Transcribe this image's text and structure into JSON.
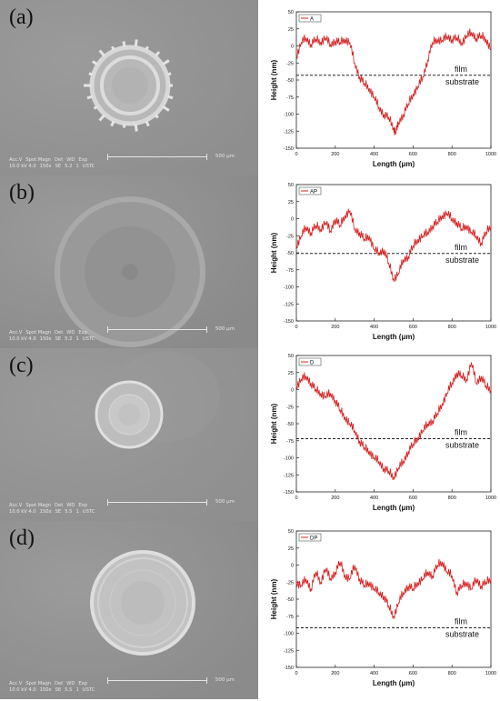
{
  "sem_panels": [
    {
      "letter": "(a)",
      "info_header": [
        "Acc.V",
        "Spot Magn",
        "Det",
        "WD",
        "Exp"
      ],
      "info_values": [
        "10.0 kV 4.0",
        "150x",
        "SE",
        "5.2",
        "1"
      ],
      "org": "USTC",
      "scale": "500 µm",
      "style": "rough"
    },
    {
      "letter": "(b)",
      "info_header": [
        "Acc.V",
        "Spot Magn",
        "Det",
        "WD",
        "Exp"
      ],
      "info_values": [
        "10.0 kV 4.0",
        "150x",
        "SE",
        "5.2",
        "1"
      ],
      "org": "USTC",
      "scale": "500 µm",
      "style": "diffuse"
    },
    {
      "letter": "(c)",
      "info_header": [
        "Acc.V",
        "Spot Magn",
        "Det",
        "WD",
        "Exp"
      ],
      "info_values": [
        "10.0 kV 4.0",
        "150x",
        "SE",
        "5.5",
        "1"
      ],
      "org": "USTC",
      "scale": "500 µm",
      "style": "small"
    },
    {
      "letter": "(d)",
      "info_header": [
        "Acc.V",
        "Spot Magn",
        "Det",
        "WD",
        "Exp"
      ],
      "info_values": [
        "10.0 kV 4.0",
        "150x",
        "SE",
        "5.5",
        "1"
      ],
      "org": "USTC",
      "scale": "500 µm",
      "style": "large"
    }
  ],
  "colors": {
    "profile_line": "#d42020",
    "baseline": "#222222",
    "axis": "#222222"
  },
  "chart_data": [
    {
      "type": "line",
      "legend": "A",
      "xlabel": "Length (μm)",
      "ylabel": "Height (nm)",
      "xlim": [
        0,
        1000
      ],
      "ylim": [
        -150,
        50
      ],
      "xticks": [
        0,
        200,
        400,
        600,
        800,
        1000
      ],
      "yticks": [
        50,
        25,
        0,
        -25,
        -50,
        -75,
        -100,
        -125,
        -150
      ],
      "baseline": -43,
      "film_label": "film",
      "substrate_label": "substrate",
      "x": [
        0,
        25,
        50,
        75,
        100,
        125,
        150,
        175,
        200,
        225,
        250,
        275,
        300,
        325,
        350,
        375,
        400,
        425,
        450,
        475,
        500,
        510,
        525,
        550,
        575,
        600,
        625,
        650,
        675,
        700,
        725,
        750,
        775,
        800,
        825,
        850,
        875,
        900,
        925,
        950,
        975,
        1000
      ],
      "y": [
        -15,
        5,
        12,
        3,
        10,
        6,
        12,
        2,
        8,
        5,
        10,
        5,
        -25,
        -45,
        -55,
        -62,
        -75,
        -90,
        -100,
        -105,
        -120,
        -128,
        -112,
        -100,
        -85,
        -70,
        -60,
        -45,
        -20,
        5,
        10,
        8,
        15,
        10,
        12,
        5,
        15,
        20,
        12,
        15,
        10,
        -5
      ]
    },
    {
      "type": "line",
      "legend": "AP",
      "xlabel": "Length (μm)",
      "ylabel": "Height (nm)",
      "xlim": [
        0,
        1000
      ],
      "ylim": [
        -150,
        50
      ],
      "xticks": [
        0,
        200,
        400,
        600,
        800,
        1000
      ],
      "yticks": [
        50,
        25,
        0,
        -25,
        -50,
        -75,
        -100,
        -125,
        -150
      ],
      "baseline": -51,
      "film_label": "film",
      "substrate_label": "substrate",
      "x": [
        0,
        25,
        50,
        75,
        100,
        125,
        150,
        175,
        200,
        225,
        250,
        275,
        300,
        325,
        350,
        375,
        400,
        425,
        450,
        475,
        500,
        525,
        550,
        575,
        600,
        625,
        650,
        675,
        700,
        725,
        750,
        775,
        800,
        825,
        850,
        875,
        900,
        925,
        950,
        975,
        1000
      ],
      "y": [
        -40,
        -25,
        -12,
        -20,
        -10,
        -15,
        -5,
        -18,
        0,
        -10,
        5,
        12,
        -15,
        -20,
        -30,
        -25,
        -45,
        -50,
        -45,
        -65,
        -88,
        -80,
        -60,
        -55,
        -40,
        -30,
        -25,
        -20,
        -10,
        -5,
        5,
        8,
        0,
        -5,
        -15,
        -10,
        -20,
        -25,
        -35,
        -20,
        -10
      ]
    },
    {
      "type": "line",
      "legend": "D",
      "xlabel": "Length (μm)",
      "ylabel": "Height (nm)",
      "xlim": [
        0,
        1000
      ],
      "ylim": [
        -150,
        50
      ],
      "xticks": [
        0,
        200,
        400,
        600,
        800,
        1000
      ],
      "yticks": [
        50,
        25,
        0,
        -25,
        -50,
        -75,
        -100,
        -125,
        -150
      ],
      "baseline": -72,
      "film_label": "film",
      "substrate_label": "substrate",
      "x": [
        0,
        25,
        50,
        75,
        100,
        125,
        150,
        175,
        200,
        225,
        250,
        275,
        300,
        325,
        350,
        375,
        400,
        425,
        450,
        475,
        500,
        525,
        550,
        575,
        600,
        625,
        650,
        675,
        700,
        725,
        750,
        775,
        800,
        825,
        850,
        875,
        900,
        925,
        950,
        975,
        1000
      ],
      "y": [
        5,
        15,
        20,
        10,
        0,
        -5,
        -10,
        -5,
        -15,
        -30,
        -40,
        -50,
        -60,
        -75,
        -85,
        -90,
        -100,
        -105,
        -115,
        -120,
        -128,
        -115,
        -105,
        -90,
        -80,
        -70,
        -60,
        -50,
        -45,
        -35,
        -20,
        -5,
        10,
        25,
        20,
        15,
        40,
        10,
        20,
        5,
        0
      ]
    },
    {
      "type": "line",
      "legend": "DP",
      "xlabel": "Length (μm)",
      "ylabel": "Height (nm)",
      "xlim": [
        0,
        1000
      ],
      "ylim": [
        -150,
        50
      ],
      "xticks": [
        0,
        200,
        400,
        600,
        800,
        1000
      ],
      "yticks": [
        50,
        25,
        0,
        -25,
        -50,
        -75,
        -100,
        -125,
        -150
      ],
      "baseline": -92,
      "film_label": "film",
      "substrate_label": "substrate",
      "x": [
        0,
        25,
        50,
        75,
        100,
        125,
        150,
        175,
        200,
        225,
        250,
        275,
        300,
        325,
        350,
        375,
        400,
        425,
        450,
        475,
        500,
        525,
        550,
        575,
        600,
        625,
        650,
        675,
        700,
        725,
        750,
        775,
        800,
        825,
        850,
        875,
        900,
        925,
        950,
        975,
        1000
      ],
      "y": [
        -25,
        -30,
        -20,
        -35,
        -10,
        -25,
        -5,
        -20,
        -10,
        5,
        -15,
        -20,
        0,
        -20,
        -30,
        -25,
        -35,
        -40,
        -45,
        -60,
        -75,
        -55,
        -40,
        -30,
        -35,
        -25,
        -20,
        -10,
        -15,
        0,
        5,
        -10,
        -15,
        -40,
        -30,
        -25,
        -35,
        -20,
        -30,
        -25,
        -20
      ]
    }
  ]
}
